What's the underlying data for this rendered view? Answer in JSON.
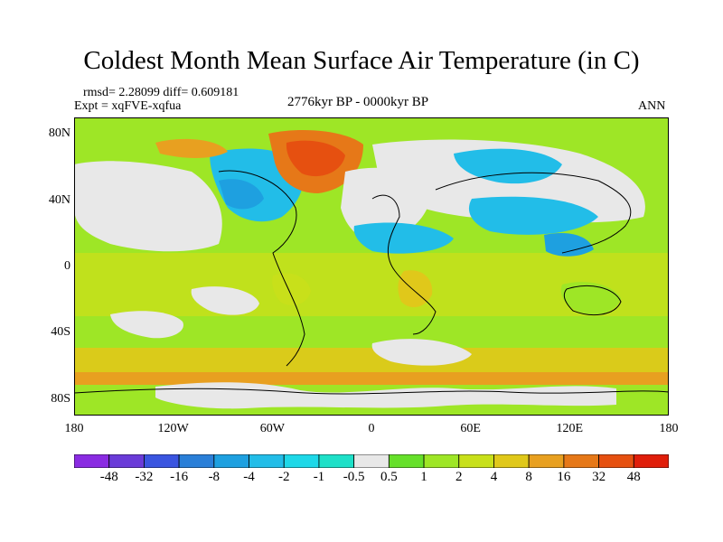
{
  "title": "Coldest Month Mean Surface Air Temperature (in C)",
  "stats": "rmsd= 2.28099 diff= 0.609181",
  "experiment": "Expt = xqFVE-xqfua",
  "period": "2776kyr BP - 0000kyr BP",
  "season": "ANN",
  "y_axis": {
    "ticks": [
      {
        "label": "80N",
        "lat": 80
      },
      {
        "label": "40N",
        "lat": 40
      },
      {
        "label": "0",
        "lat": 0
      },
      {
        "label": "40S",
        "lat": -40
      },
      {
        "label": "80S",
        "lat": -80
      }
    ]
  },
  "x_axis": {
    "ticks": [
      {
        "label": "180",
        "lon": -180
      },
      {
        "label": "120W",
        "lon": -120
      },
      {
        "label": "60W",
        "lon": -60
      },
      {
        "label": "0",
        "lon": 0
      },
      {
        "label": "60E",
        "lon": 60
      },
      {
        "label": "120E",
        "lon": 120
      },
      {
        "label": "180",
        "lon": 180
      }
    ]
  },
  "colorbar": {
    "labels": [
      "-48",
      "-32",
      "-16",
      "-8",
      "-4",
      "-2",
      "-1",
      "-0.5",
      "0.5",
      "1",
      "2",
      "4",
      "8",
      "16",
      "32",
      "48"
    ],
    "colors": [
      "#8a2be2",
      "#6a3bd8",
      "#3a55e0",
      "#2a7fd8",
      "#1ea0e0",
      "#22bde8",
      "#1ed8e8",
      "#1ee0c8",
      "#e8e8e8",
      "#66e02a",
      "#9ee626",
      "#c8e01a",
      "#e0c81a",
      "#e8a020",
      "#e67818",
      "#e65010",
      "#e01e0a"
    ]
  },
  "regions": [
    {
      "name": "sea-ice-north",
      "color": "#e8e8e8"
    },
    {
      "name": "ocean-warm",
      "color": "#9ee626"
    },
    {
      "name": "land-cool",
      "color": "#22bde8"
    },
    {
      "name": "land-warm",
      "color": "#e67818"
    }
  ]
}
